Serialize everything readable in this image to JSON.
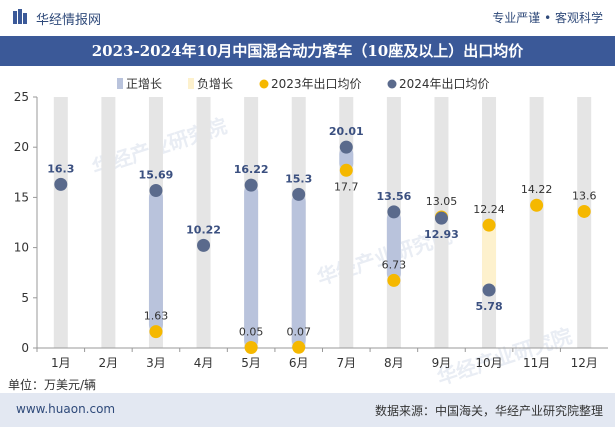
{
  "header": {
    "brand": "华经情报网",
    "slogan": "专业严谨 • 客观科学"
  },
  "footer": {
    "unit": "单位：万美元/辆",
    "website": "www.huaon.com",
    "source": "数据来源：中国海关，华经产业研究院整理"
  },
  "watermark": "华经产业研究院",
  "colors": {
    "title_band": "#3b5998",
    "pos_bar": "#b9c3dc",
    "neg_bar": "#fdf1cd",
    "dot_2023": "#f5b800",
    "dot_2024": "#5a6a8c",
    "column": "#e5e5e5"
  },
  "chart_data": {
    "type": "scatter",
    "title": "2023-2024年10月中国混合动力客车（10座及以上）出口均价",
    "categories": [
      "1月",
      "2月",
      "3月",
      "4月",
      "5月",
      "6月",
      "7月",
      "8月",
      "9月",
      "10月",
      "11月",
      "12月"
    ],
    "ylim": [
      0,
      25
    ],
    "yticks": [
      "0",
      "5",
      "10",
      "15",
      "20",
      "25"
    ],
    "legend": [
      "正增长",
      "负增长",
      "2023年出口均价",
      "2024年出口均价"
    ],
    "series": [
      {
        "name": "2023年出口均价",
        "values": [
          null,
          null,
          1.63,
          null,
          0.05,
          0.07,
          17.7,
          6.73,
          13.05,
          12.24,
          14.22,
          13.6
        ]
      },
      {
        "name": "2024年出口均价",
        "values": [
          16.3,
          null,
          15.69,
          10.22,
          16.22,
          15.3,
          20.01,
          13.56,
          12.93,
          5.78,
          null,
          null
        ]
      }
    ],
    "labels_2023": [
      "",
      "",
      "1.63",
      "",
      "0.05",
      "0.07",
      "17.7",
      "6.73",
      "13.05",
      "12.24",
      "14.22",
      "13.6"
    ],
    "labels_2024": [
      "16.3",
      "",
      "15.69",
      "10.22",
      "16.22",
      "15.3",
      "20.01",
      "13.56",
      "12.93",
      "5.78",
      "",
      ""
    ]
  }
}
